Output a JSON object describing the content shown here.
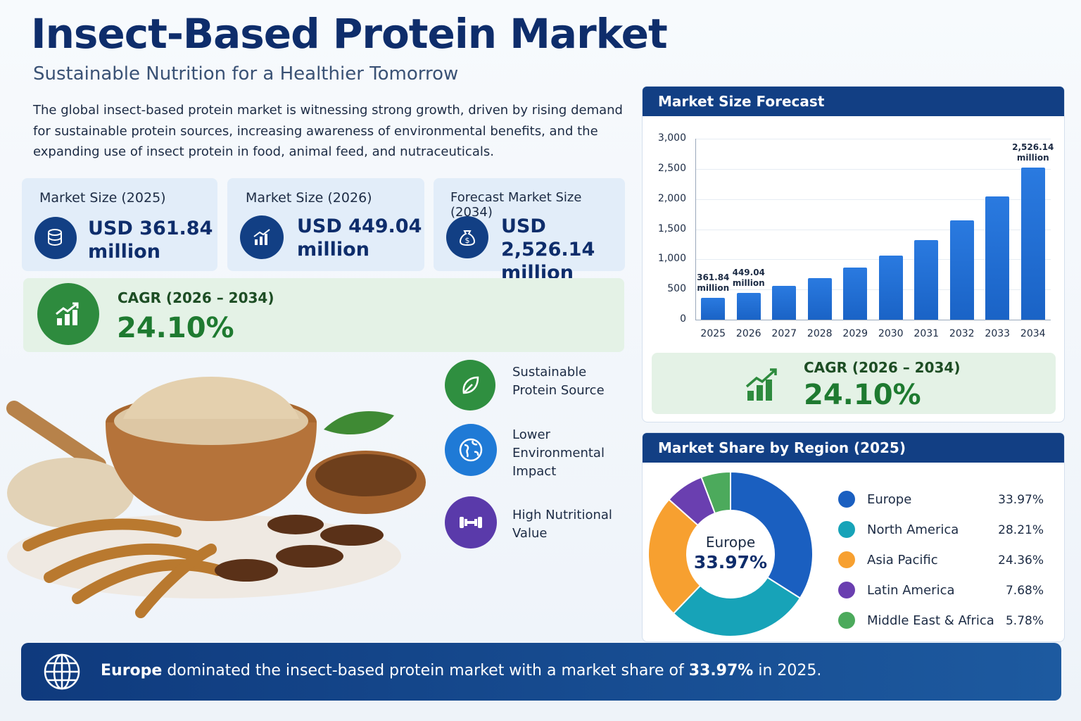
{
  "header": {
    "title": "Insect-Based Protein Market",
    "subtitle": "Sustainable Nutrition for a Healthier Tomorrow",
    "description": "The global insect-based protein market is witnessing strong growth, driven by rising demand for sustainable protein sources, increasing awareness of environmental benefits, and the expanding use of insect protein in food, animal feed, and nutraceuticals."
  },
  "kpis": [
    {
      "label": "Market Size (2025)",
      "value": "USD 361.84 million"
    },
    {
      "label": "Market Size (2026)",
      "value": "USD 449.04 million"
    },
    {
      "label": "Forecast Market Size (2034)",
      "value": "USD 2,526.14 million"
    }
  ],
  "cagr": {
    "label": "CAGR (2026 – 2034)",
    "value": "24.10%"
  },
  "features": [
    "Sustainable Protein Source",
    "Lower Environmental Impact",
    "High Nutritional Value"
  ],
  "chart_data": [
    {
      "type": "bar",
      "title": "Market Size Forecast",
      "categories": [
        "2025",
        "2026",
        "2027",
        "2028",
        "2029",
        "2030",
        "2031",
        "2032",
        "2033",
        "2034"
      ],
      "values": [
        361.84,
        449.04,
        557,
        692,
        859,
        1066,
        1323,
        1641,
        2037,
        2526.14
      ],
      "value_labels": [
        "361.84 million",
        "449.04 million",
        null,
        null,
        null,
        null,
        null,
        null,
        null,
        "2,526.14 million"
      ],
      "color": "#1a63c6",
      "ylim": [
        0,
        3000
      ],
      "yticks": [
        0,
        500,
        {
          "value": 1000,
          "label": "1,000"
        },
        {
          "value": 1500,
          "label": "1,500"
        },
        {
          "value": 2000,
          "label": "2,000"
        },
        {
          "value": 2500,
          "label": "2,500"
        },
        {
          "value": 3000,
          "label": "3,000"
        }
      ],
      "grid": true
    },
    {
      "type": "donut",
      "title": "Market Share by Region (2025)",
      "categories": [
        "Europe",
        "North America",
        "Asia Pacific",
        "Latin America",
        "Middle East & Africa"
      ],
      "values": [
        33.97,
        28.21,
        24.36,
        7.68,
        5.78
      ],
      "value_labels": [
        "33.97%",
        "28.21%",
        "24.36%",
        "7.68%",
        "5.78%"
      ],
      "colors": [
        "#1a5fc0",
        "#17a3b8",
        "#f7a030",
        "#6a3fb0",
        "#4caa5c"
      ]
    }
  ],
  "footer": {
    "text_1": " dominated the insect-based protein market with a market share of ",
    "text_2": " in 2025."
  }
}
